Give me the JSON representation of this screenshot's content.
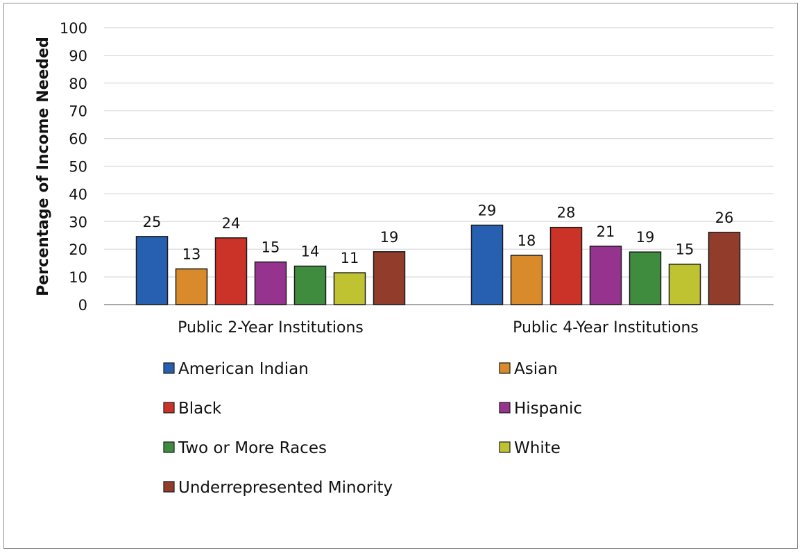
{
  "chart_data": {
    "type": "bar",
    "title": "",
    "xlabel": "",
    "ylabel": "Percentage of Income Needed",
    "ylim": [
      0,
      100
    ],
    "yticks": [
      0,
      10,
      20,
      30,
      40,
      50,
      60,
      70,
      80,
      90,
      100
    ],
    "grid": true,
    "legend_position": "bottom",
    "categories": [
      "Public 2-Year Institutions",
      "Public 4-Year Institutions"
    ],
    "series": [
      {
        "name": "American Indian",
        "color": "#2760b0",
        "values": [
          24.6,
          28.7
        ],
        "labels": [
          "25",
          "29"
        ]
      },
      {
        "name": "Asian",
        "color": "#d98b2b",
        "values": [
          12.9,
          17.8
        ],
        "labels": [
          "13",
          "18"
        ]
      },
      {
        "name": "Black",
        "color": "#cc3328",
        "values": [
          24.1,
          27.9
        ],
        "labels": [
          "24",
          "28"
        ]
      },
      {
        "name": "Hispanic",
        "color": "#95338f",
        "values": [
          15.4,
          21.1
        ],
        "labels": [
          "15",
          "21"
        ]
      },
      {
        "name": "Two or More Races",
        "color": "#3f8c3e",
        "values": [
          13.9,
          19.0
        ],
        "labels": [
          "14",
          "19"
        ]
      },
      {
        "name": "White",
        "color": "#c0c331",
        "values": [
          11.5,
          14.6
        ],
        "labels": [
          "11",
          "15"
        ]
      },
      {
        "name": "Underrepresented Minority",
        "color": "#923c2c",
        "values": [
          19.1,
          26.1
        ],
        "labels": [
          "19",
          "26"
        ]
      }
    ]
  }
}
